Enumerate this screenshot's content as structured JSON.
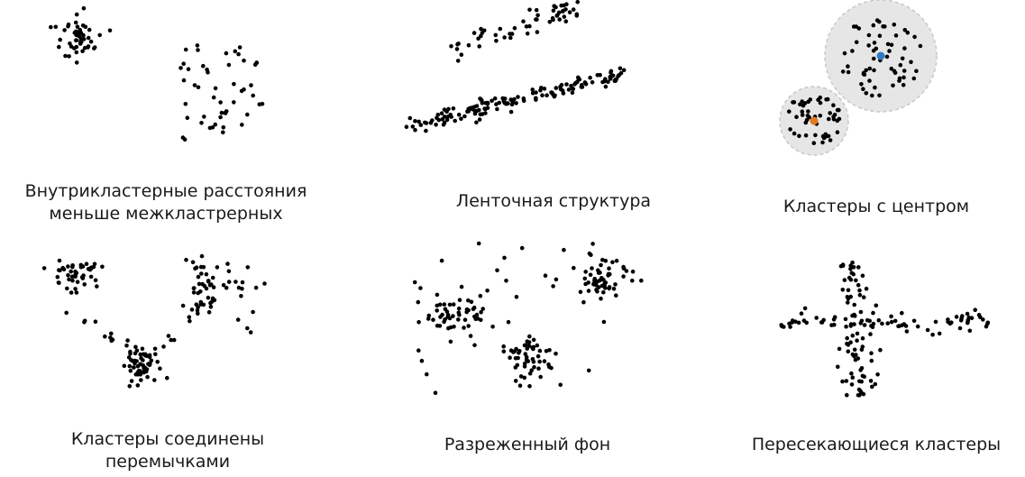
{
  "panels": [
    {
      "id": "separated",
      "caption_lines": [
        "Внутрикластерные расстояния",
        "меньше межкластрерных"
      ]
    },
    {
      "id": "ribbon",
      "caption_lines": [
        "Ленточная структура"
      ]
    },
    {
      "id": "centered",
      "caption_lines": [
        "Кластеры с центром"
      ]
    },
    {
      "id": "bridged",
      "caption_lines": [
        "Кластеры соединены",
        "перемычками"
      ]
    },
    {
      "id": "sparse-background",
      "caption_lines": [
        "Разреженный фон"
      ]
    },
    {
      "id": "intersecting",
      "caption_lines": [
        "Пересекающиеся кластеры"
      ]
    }
  ],
  "colors": {
    "point": "#000000",
    "circle_fill": "#e6e6e6",
    "circle_stroke": "#c8c8c8",
    "center_blue": "#2f7bbf",
    "center_orange": "#e07b1e"
  }
}
